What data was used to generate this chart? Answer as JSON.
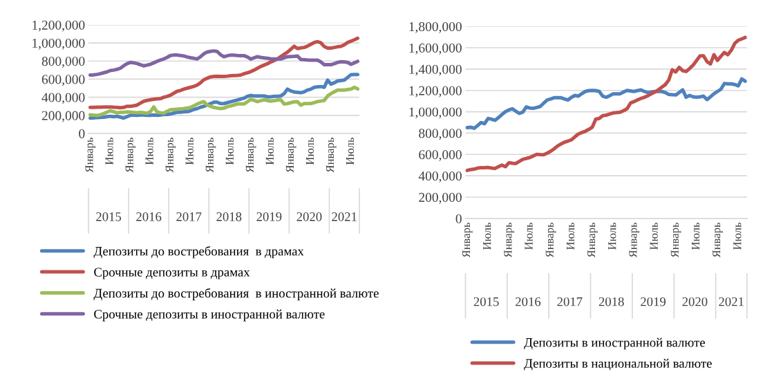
{
  "chart_data": [
    {
      "type": "line",
      "categories": [
        "Январь",
        null,
        null,
        null,
        null,
        null,
        "Июль",
        null,
        null,
        null,
        null,
        null,
        "Январь",
        null,
        null,
        null,
        null,
        null,
        "Июль",
        null,
        null,
        null,
        null,
        null,
        "Январь",
        null,
        null,
        null,
        null,
        null,
        "Июль",
        null,
        null,
        null,
        null,
        null,
        "Январь",
        null,
        null,
        null,
        null,
        null,
        "Июль",
        null,
        null,
        null,
        null,
        null,
        "Январь",
        null,
        null,
        null,
        null,
        null,
        "Июль",
        null,
        null,
        null,
        null,
        null,
        "Январь",
        null,
        null,
        null,
        null,
        null,
        "Июль",
        null,
        null,
        null,
        null,
        null,
        "Январь",
        null,
        null,
        null,
        null,
        null,
        "Июль",
        null,
        null
      ],
      "series": [
        {
          "name": "Депозиты до востребования  в драмах",
          "color": "#4f81bd",
          "values": [
            170000,
            172000,
            175000,
            178000,
            180000,
            185000,
            190000,
            185000,
            190000,
            180000,
            170000,
            185000,
            200000,
            205000,
            200000,
            205000,
            205000,
            200000,
            200000,
            205000,
            200000,
            205000,
            210000,
            210000,
            215000,
            225000,
            235000,
            235000,
            240000,
            240000,
            250000,
            265000,
            275000,
            290000,
            300000,
            315000,
            330000,
            345000,
            345000,
            330000,
            330000,
            340000,
            350000,
            360000,
            370000,
            380000,
            390000,
            410000,
            420000,
            415000,
            415000,
            415000,
            415000,
            405000,
            405000,
            410000,
            410000,
            415000,
            440000,
            490000,
            470000,
            458000,
            455000,
            450000,
            460000,
            480000,
            490000,
            510000,
            515000,
            518000,
            510000,
            590000,
            545000,
            560000,
            580000,
            585000,
            590000,
            620000,
            650000,
            652000,
            652000
          ]
        },
        {
          "name": "Срочные депозиты в драмах",
          "color": "#c0504d",
          "values": [
            288000,
            288000,
            290000,
            290000,
            292000,
            293000,
            293000,
            290000,
            288000,
            285000,
            288000,
            300000,
            300000,
            305000,
            313000,
            335000,
            355000,
            365000,
            372000,
            378000,
            382000,
            385000,
            400000,
            410000,
            423000,
            445000,
            466000,
            475000,
            490000,
            500000,
            510000,
            520000,
            535000,
            560000,
            594000,
            610000,
            625000,
            630000,
            632000,
            630000,
            630000,
            633000,
            637000,
            640000,
            642000,
            645000,
            660000,
            670000,
            683000,
            700000,
            720000,
            740000,
            755000,
            770000,
            790000,
            805000,
            823000,
            850000,
            875000,
            899000,
            930000,
            963000,
            938000,
            945000,
            950000,
            965000,
            985000,
            1005000,
            1014000,
            1001000,
            960000,
            943000,
            943000,
            950000,
            958000,
            963000,
            980000,
            1005000,
            1020000,
            1035000,
            1052000
          ]
        },
        {
          "name": "Депозиты до востребования  в иностранной валюте",
          "color": "#9bbb59",
          "values": [
            206000,
            202000,
            199000,
            205000,
            219000,
            235000,
            250000,
            240000,
            229000,
            232000,
            235000,
            238000,
            237000,
            233000,
            230000,
            232000,
            229000,
            224000,
            240000,
            293000,
            237000,
            230000,
            224000,
            245000,
            262000,
            265000,
            268000,
            272000,
            275000,
            280000,
            288000,
            305000,
            326000,
            340000,
            352000,
            313000,
            300000,
            288000,
            280000,
            275000,
            280000,
            295000,
            305000,
            315000,
            326000,
            326000,
            326000,
            350000,
            377000,
            365000,
            352000,
            362000,
            372000,
            365000,
            357000,
            362000,
            368000,
            372000,
            326000,
            330000,
            340000,
            350000,
            352000,
            313000,
            330000,
            331000,
            331000,
            340000,
            352000,
            358000,
            364000,
            415000,
            440000,
            460000,
            479000,
            480000,
            479000,
            485000,
            490000,
            510000,
            492000
          ]
        },
        {
          "name": "Срочные депозиты в иностранной валюте",
          "color": "#8064a2",
          "values": [
            645000,
            648000,
            652000,
            660000,
            670000,
            680000,
            695000,
            700000,
            708000,
            720000,
            747000,
            770000,
            785000,
            780000,
            772000,
            760000,
            747000,
            755000,
            764000,
            780000,
            797000,
            810000,
            823000,
            840000,
            861000,
            866000,
            866000,
            862000,
            856000,
            845000,
            836000,
            830000,
            823000,
            848000,
            880000,
            900000,
            907000,
            912000,
            905000,
            870000,
            848000,
            858000,
            866000,
            865000,
            862000,
            860000,
            860000,
            845000,
            823000,
            835000,
            848000,
            840000,
            835000,
            830000,
            825000,
            823000,
            823000,
            823000,
            835000,
            848000,
            850000,
            852000,
            856000,
            818000,
            815000,
            812000,
            810000,
            810000,
            810000,
            790000,
            760000,
            760000,
            760000,
            770000,
            785000,
            792000,
            790000,
            785000,
            764000,
            780000,
            797000
          ]
        }
      ],
      "ylim": [
        0,
        1200000
      ],
      "yticks": [
        0,
        {
          "value": 200000,
          "label": "200,000"
        },
        {
          "value": 400000,
          "label": "400,000"
        },
        {
          "value": 600000,
          "label": "600,000"
        },
        {
          "value": 800000,
          "label": "800,000"
        },
        {
          "value": 1000000,
          "label": "1,000,000"
        },
        {
          "value": 1200000,
          "label": "1,200,000"
        }
      ],
      "grid": "y",
      "legend": "bottom",
      "annotations": [
        "2015",
        "2016",
        "2017",
        "2018",
        "2019",
        "2020",
        "2021"
      ]
    },
    {
      "type": "line",
      "categories": [
        "Январь",
        null,
        null,
        null,
        null,
        null,
        "Июль",
        null,
        null,
        null,
        null,
        null,
        "Январь",
        null,
        null,
        null,
        null,
        null,
        "Июль",
        null,
        null,
        null,
        null,
        null,
        "Январь",
        null,
        null,
        null,
        null,
        null,
        "Июль",
        null,
        null,
        null,
        null,
        null,
        "Январь",
        null,
        null,
        null,
        null,
        null,
        "Июль",
        null,
        null,
        null,
        null,
        null,
        "Январь",
        null,
        null,
        null,
        null,
        null,
        "Июль",
        null,
        null,
        null,
        null,
        null,
        "Январь",
        null,
        null,
        null,
        null,
        null,
        "Июль",
        null,
        null,
        null,
        null,
        null,
        "Январь",
        null,
        null,
        null,
        null,
        null,
        "Июль",
        null,
        null
      ],
      "series": [
        {
          "name": "Депозиты в иностранной валюте",
          "color": "#4f81bd",
          "values": [
            851000,
            855000,
            845000,
            870000,
            899000,
            888000,
            937000,
            930000,
            920000,
            945000,
            974000,
            1000000,
            1017000,
            1028000,
            1005000,
            985000,
            996000,
            1045000,
            1035000,
            1032000,
            1040000,
            1049000,
            1080000,
            1110000,
            1120000,
            1131000,
            1131000,
            1131000,
            1120000,
            1110000,
            1135000,
            1153000,
            1146000,
            1170000,
            1190000,
            1198000,
            1200000,
            1198000,
            1190000,
            1146000,
            1136000,
            1150000,
            1168000,
            1168000,
            1168000,
            1185000,
            1200000,
            1195000,
            1190000,
            1198000,
            1205000,
            1190000,
            1179000,
            1185000,
            1190000,
            1190000,
            1190000,
            1180000,
            1162000,
            1160000,
            1157000,
            1180000,
            1205000,
            1136000,
            1153000,
            1140000,
            1136000,
            1140000,
            1146000,
            1114000,
            1140000,
            1168000,
            1190000,
            1211000,
            1265000,
            1262000,
            1261000,
            1255000,
            1243000,
            1308000,
            1287000
          ]
        },
        {
          "name": "Депозиты в национальной валюте",
          "color": "#c0504d",
          "values": [
            450000,
            458000,
            462000,
            472000,
            475000,
            476000,
            478000,
            472000,
            468000,
            485000,
            500000,
            485000,
            522000,
            518000,
            515000,
            535000,
            554000,
            562000,
            571000,
            585000,
            601000,
            598000,
            597000,
            612000,
            629000,
            652000,
            679000,
            698000,
            715000,
            725000,
            737000,
            765000,
            791000,
            805000,
            817000,
            835000,
            856000,
            931000,
            937000,
            963000,
            968000,
            978000,
            989000,
            992000,
            996000,
            1010000,
            1028000,
            1082000,
            1095000,
            1110000,
            1125000,
            1136000,
            1150000,
            1168000,
            1185000,
            1205000,
            1230000,
            1254000,
            1297000,
            1394000,
            1373000,
            1416000,
            1384000,
            1377000,
            1405000,
            1437000,
            1480000,
            1524000,
            1524000,
            1470000,
            1448000,
            1535000,
            1481000,
            1520000,
            1556000,
            1535000,
            1577000,
            1642000,
            1670000,
            1683000,
            1696000
          ]
        }
      ],
      "ylim": [
        0,
        1800000
      ],
      "yticks": [
        0,
        {
          "value": 200000,
          "label": "200,000"
        },
        {
          "value": 400000,
          "label": "400,000"
        },
        {
          "value": 600000,
          "label": "600,000"
        },
        {
          "value": 800000,
          "label": "800,000"
        },
        {
          "value": 1000000,
          "label": "1,000,000"
        },
        {
          "value": 1200000,
          "label": "1,200,000"
        },
        {
          "value": 1400000,
          "label": "1,400,000"
        },
        {
          "value": 1600000,
          "label": "1,600,000"
        },
        {
          "value": 1800000,
          "label": "1,800,000"
        }
      ],
      "grid": "y",
      "legend": "bottom",
      "annotations": [
        "2015",
        "2016",
        "2017",
        "2018",
        "2019",
        "2020",
        "2021"
      ]
    }
  ]
}
